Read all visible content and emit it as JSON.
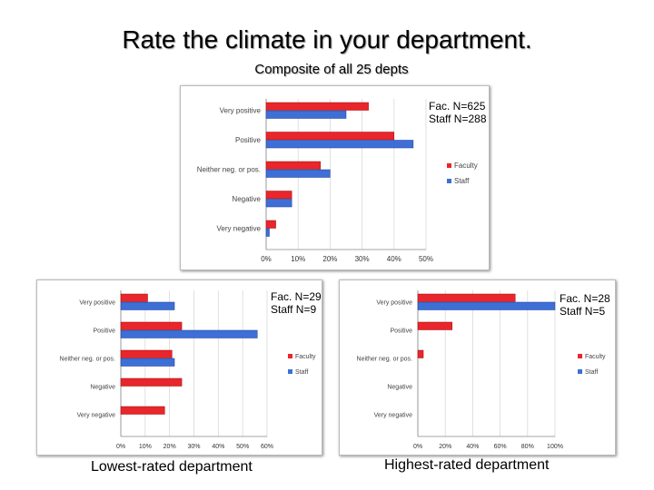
{
  "title": "Rate the climate in your department.",
  "subtitle": "Composite of all 25 depts",
  "captions": {
    "lowest": "Lowest-rated department",
    "highest": "Highest-rated department"
  },
  "colors": {
    "faculty": "#e8262b",
    "staff": "#3d6fd6"
  },
  "chart_data": [
    {
      "id": "composite",
      "type": "bar",
      "orientation": "horizontal",
      "categories": [
        "Very positive",
        "Positive",
        "Neither neg. or pos.",
        "Negative",
        "Very negative"
      ],
      "series": [
        {
          "name": "Faculty",
          "values": [
            32,
            40,
            17,
            8,
            3
          ]
        },
        {
          "name": "Staff",
          "values": [
            25,
            46,
            20,
            8,
            1
          ]
        }
      ],
      "xticks": [
        "0%",
        "10%",
        "20%",
        "30%",
        "40%",
        "50%"
      ],
      "xlim": [
        0,
        50
      ],
      "n_label": [
        "Fac. N=625",
        "Staff N=288"
      ],
      "legend": "right"
    },
    {
      "id": "lowest",
      "type": "bar",
      "orientation": "horizontal",
      "categories": [
        "Very positive",
        "Positive",
        "Neither neg. or pos.",
        "Negative",
        "Very negative"
      ],
      "series": [
        {
          "name": "Faculty",
          "values": [
            11,
            25,
            21,
            25,
            18
          ]
        },
        {
          "name": "Staff",
          "values": [
            22,
            56,
            22,
            0,
            0
          ]
        }
      ],
      "xticks": [
        "0%",
        "10%",
        "20%",
        "30%",
        "40%",
        "50%",
        "60%"
      ],
      "xlim": [
        0,
        60
      ],
      "n_label": [
        "Fac. N=29",
        "Staff N=9"
      ],
      "legend": "right"
    },
    {
      "id": "highest",
      "type": "bar",
      "orientation": "horizontal",
      "categories": [
        "Very positive",
        "Positive",
        "Neither neg. or pos.",
        "Negative",
        "Very negative"
      ],
      "series": [
        {
          "name": "Faculty",
          "values": [
            71,
            25,
            4,
            0,
            0
          ]
        },
        {
          "name": "Staff",
          "values": [
            100,
            0,
            0,
            0,
            0
          ]
        }
      ],
      "xticks": [
        "0%",
        "20%",
        "40%",
        "60%",
        "80%",
        "100%"
      ],
      "xlim": [
        0,
        100
      ],
      "n_label": [
        "Fac. N=28",
        "Staff N=5"
      ],
      "legend": "right"
    }
  ]
}
